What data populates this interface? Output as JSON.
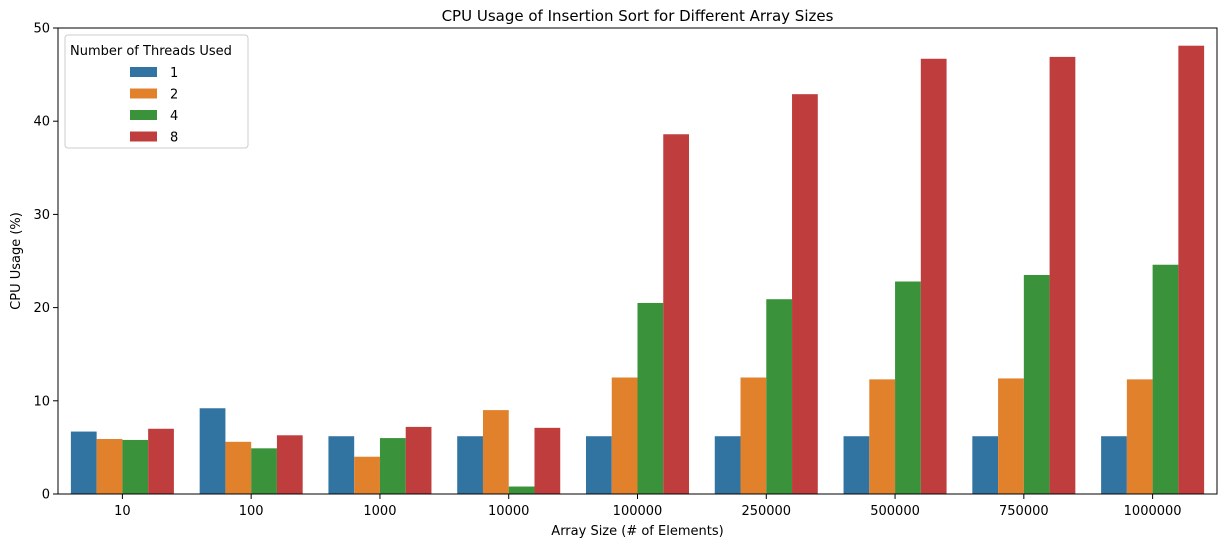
{
  "chart_data": {
    "type": "bar",
    "title": "CPU Usage of Insertion Sort for Different Array Sizes",
    "xlabel": "Array Size (# of Elements)",
    "ylabel": "CPU Usage (%)",
    "ylim": [
      0,
      50
    ],
    "yticks": [
      0,
      10,
      20,
      30,
      40,
      50
    ],
    "categories": [
      "10",
      "100",
      "1000",
      "10000",
      "100000",
      "250000",
      "500000",
      "750000",
      "1000000"
    ],
    "legend": {
      "title": "Number of Threads Used",
      "placement": "top-left"
    },
    "grid": false,
    "series": [
      {
        "name": "1",
        "color": "#3274a1",
        "values": [
          6.7,
          9.2,
          6.2,
          6.2,
          6.2,
          6.2,
          6.2,
          6.2,
          6.2
        ]
      },
      {
        "name": "2",
        "color": "#e1812c",
        "values": [
          5.9,
          5.6,
          4.0,
          9.0,
          12.5,
          12.5,
          12.3,
          12.4,
          12.3
        ]
      },
      {
        "name": "4",
        "color": "#3a923a",
        "values": [
          5.8,
          4.9,
          6.0,
          0.8,
          20.5,
          20.9,
          22.8,
          23.5,
          24.6
        ]
      },
      {
        "name": "8",
        "color": "#c03d3e",
        "values": [
          7.0,
          6.3,
          7.2,
          7.1,
          38.6,
          42.9,
          46.7,
          46.9,
          48.1
        ]
      }
    ]
  }
}
